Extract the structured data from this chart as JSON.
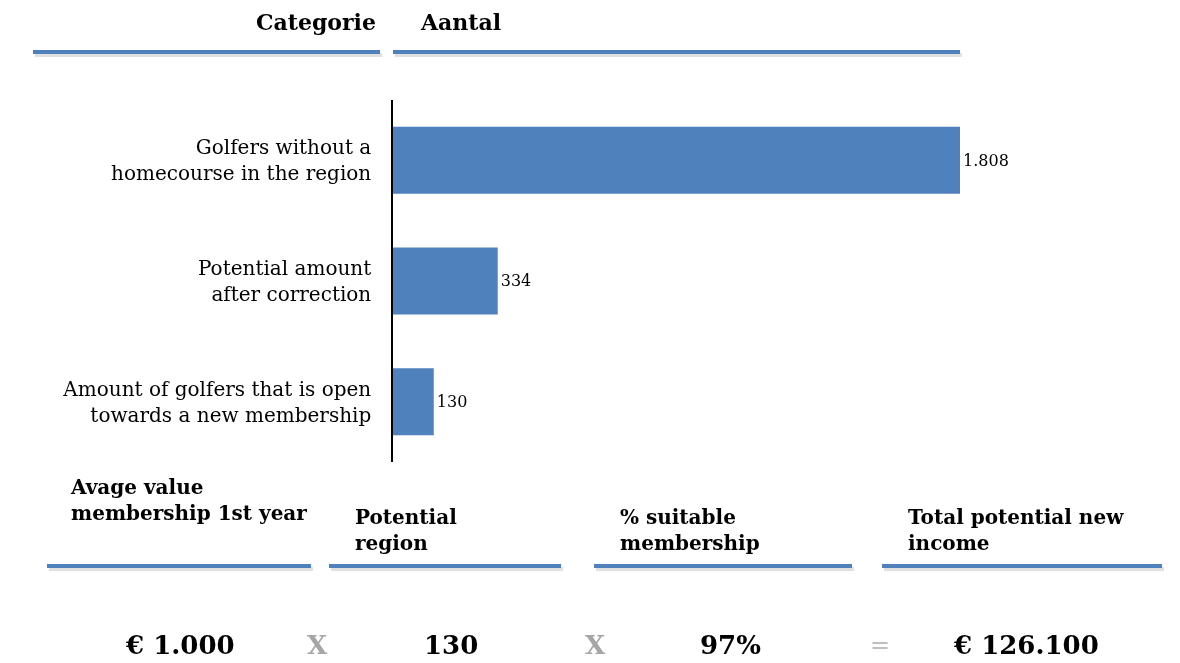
{
  "chart_data": {
    "type": "bar",
    "orientation": "horizontal",
    "ylabel": "Categorie",
    "xlabel": "Aantal",
    "categories": [
      "Golfers without a\nhomecourse in the region",
      "Potential amount\nafter correction",
      "Amount of golfers that is open\ntowards a new membership"
    ],
    "values": [
      1808,
      334,
      130
    ],
    "color": "#4f81bd",
    "value_labels": [
      "1.808",
      "334",
      "130"
    ],
    "tick_labels": "y",
    "annotations": [
      "Avage value\nmembership 1st year",
      "Potential\nregion",
      "% suitable\nmembership",
      "Total potential new\nincome",
      "€ 1.000",
      "X",
      "130",
      "X",
      "97%",
      "=",
      "€ 126.100"
    ]
  }
}
